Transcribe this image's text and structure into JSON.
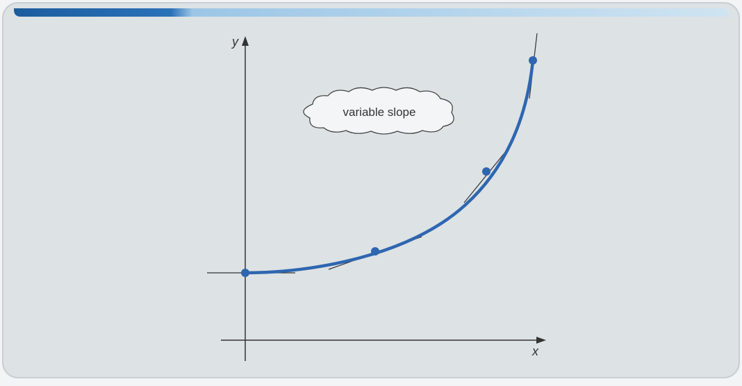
{
  "axes": {
    "y_label": "y",
    "x_label": "x"
  },
  "annotation": "variable slope"
}
